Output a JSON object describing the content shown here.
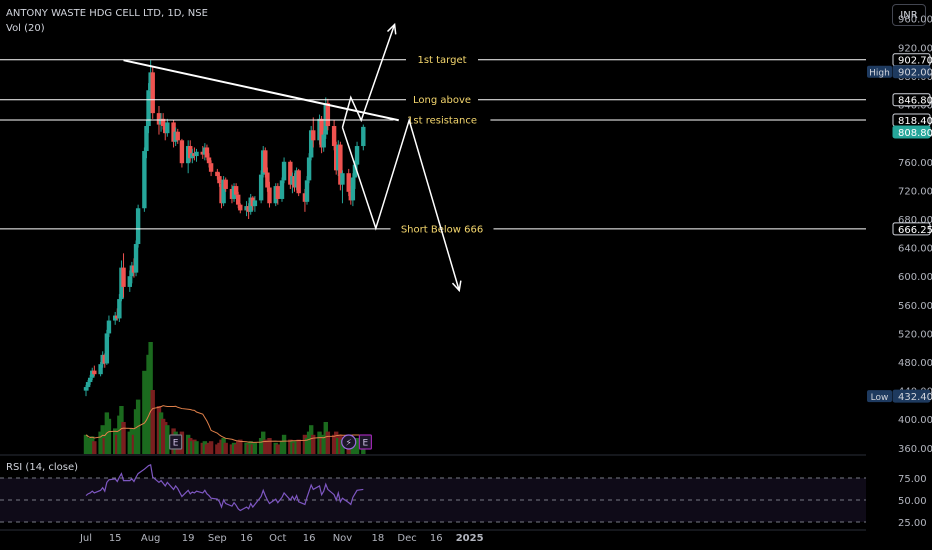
{
  "header": {
    "title": "ANTONY WASTE HDG CELL LTD, 1D, NSE",
    "volume_label": "Vol (20)",
    "rsi_label": "RSI (14, close)",
    "currency": "INR"
  },
  "chart_data": {
    "type": "candlestick",
    "symbol": "ANTONY WASTE HDG CELL LTD",
    "interval": "1D",
    "exchange": "NSE",
    "currency": "INR",
    "ylim": [
      350,
      975
    ],
    "y_ticks": [
      360,
      400,
      440,
      480,
      520,
      560,
      600,
      640,
      680,
      720,
      760,
      800,
      840,
      880,
      920,
      960
    ],
    "x_ticks": [
      {
        "label": "Jul",
        "date": "2024-07-01"
      },
      {
        "label": "15",
        "date": "2024-07-15"
      },
      {
        "label": "Aug",
        "date": "2024-08-01"
      },
      {
        "label": "19",
        "date": "2024-08-19"
      },
      {
        "label": "Sep",
        "date": "2024-09-02"
      },
      {
        "label": "16",
        "date": "2024-09-16"
      },
      {
        "label": "Oct",
        "date": "2024-10-01"
      },
      {
        "label": "16",
        "date": "2024-10-16"
      },
      {
        "label": "Nov",
        "date": "2024-11-01"
      },
      {
        "label": "18",
        "date": "2024-11-18"
      },
      {
        "label": "Dec",
        "date": "2024-12-02"
      },
      {
        "label": "16",
        "date": "2024-12-16"
      },
      {
        "label": "2025",
        "date": "2025-01-01"
      }
    ],
    "price_labels": [
      {
        "label": "",
        "value": "902.70",
        "price": 902.7,
        "style": "outline"
      },
      {
        "label": "High",
        "value": "902.00",
        "price": 902.0,
        "style": "blue"
      },
      {
        "label": "",
        "value": "846.80",
        "price": 846.8,
        "style": "outline"
      },
      {
        "label": "",
        "value": "818.40",
        "price": 818.4,
        "style": "outline"
      },
      {
        "label": "",
        "value": "808.80",
        "price": 808.8,
        "style": "green"
      },
      {
        "label": "",
        "value": "666.25",
        "price": 666.25,
        "style": "outline"
      },
      {
        "label": "Low",
        "value": "432.40",
        "price": 432.4,
        "style": "blue"
      }
    ],
    "horizontal_levels": [
      {
        "name": "1st target",
        "price": 902.7
      },
      {
        "name": "Long above",
        "price": 846.8
      },
      {
        "name": "1st resistance",
        "price": 818.4
      },
      {
        "name": "Short Below 666",
        "price": 666.25
      }
    ],
    "trendline": [
      {
        "date": "2024-07-19",
        "price": 902
      },
      {
        "date": "2024-11-28",
        "price": 818
      }
    ],
    "projections": {
      "bullish": [
        {
          "date": "2024-11-01",
          "price": 808
        },
        {
          "date": "2024-11-05",
          "price": 850
        },
        {
          "date": "2024-11-10",
          "price": 818
        },
        {
          "date": "2024-11-26",
          "price": 952
        }
      ],
      "bearish": [
        {
          "date": "2024-11-01",
          "price": 808
        },
        {
          "date": "2024-11-17",
          "price": 667
        },
        {
          "date": "2024-12-03",
          "price": 818
        },
        {
          "date": "2024-12-27",
          "price": 580
        }
      ]
    },
    "candles": [
      {
        "t": "2024-07-01",
        "o": 440,
        "h": 448,
        "l": 432.4,
        "c": 445
      },
      {
        "t": "2024-07-02",
        "o": 445,
        "h": 455,
        "l": 440,
        "c": 452
      },
      {
        "t": "2024-07-03",
        "o": 452,
        "h": 462,
        "l": 448,
        "c": 458
      },
      {
        "t": "2024-07-04",
        "o": 458,
        "h": 472,
        "l": 455,
        "c": 468
      },
      {
        "t": "2024-07-05",
        "o": 468,
        "h": 475,
        "l": 460,
        "c": 463
      },
      {
        "t": "2024-07-08",
        "o": 463,
        "h": 480,
        "l": 460,
        "c": 477
      },
      {
        "t": "2024-07-09",
        "o": 477,
        "h": 495,
        "l": 472,
        "c": 490
      },
      {
        "t": "2024-07-10",
        "o": 490,
        "h": 492,
        "l": 472,
        "c": 478
      },
      {
        "t": "2024-07-11",
        "o": 478,
        "h": 525,
        "l": 476,
        "c": 520
      },
      {
        "t": "2024-07-12",
        "o": 520,
        "h": 545,
        "l": 515,
        "c": 538
      },
      {
        "t": "2024-07-15",
        "o": 538,
        "h": 550,
        "l": 532,
        "c": 545
      },
      {
        "t": "2024-07-16",
        "o": 545,
        "h": 555,
        "l": 538,
        "c": 541
      },
      {
        "t": "2024-07-17",
        "o": 541,
        "h": 575,
        "l": 536,
        "c": 568
      },
      {
        "t": "2024-07-18",
        "o": 568,
        "h": 622,
        "l": 565,
        "c": 612
      },
      {
        "t": "2024-07-19",
        "o": 612,
        "h": 632,
        "l": 570,
        "c": 585
      },
      {
        "t": "2024-07-22",
        "o": 585,
        "h": 608,
        "l": 578,
        "c": 600
      },
      {
        "t": "2024-07-23",
        "o": 600,
        "h": 620,
        "l": 590,
        "c": 615
      },
      {
        "t": "2024-07-24",
        "o": 615,
        "h": 625,
        "l": 598,
        "c": 605
      },
      {
        "t": "2024-07-25",
        "o": 605,
        "h": 650,
        "l": 600,
        "c": 645
      },
      {
        "t": "2024-07-26",
        "o": 645,
        "h": 700,
        "l": 640,
        "c": 695
      },
      {
        "t": "2024-07-29",
        "o": 695,
        "h": 780,
        "l": 690,
        "c": 775
      },
      {
        "t": "2024-07-30",
        "o": 775,
        "h": 818,
        "l": 765,
        "c": 810
      },
      {
        "t": "2024-07-31",
        "o": 810,
        "h": 870,
        "l": 800,
        "c": 860
      },
      {
        "t": "2024-08-01",
        "o": 860,
        "h": 902,
        "l": 850,
        "c": 885
      },
      {
        "t": "2024-08-02",
        "o": 885,
        "h": 892,
        "l": 820,
        "c": 828
      },
      {
        "t": "2024-08-05",
        "o": 828,
        "h": 838,
        "l": 798,
        "c": 812
      },
      {
        "t": "2024-08-06",
        "o": 812,
        "h": 828,
        "l": 802,
        "c": 820
      },
      {
        "t": "2024-08-07",
        "o": 820,
        "h": 828,
        "l": 805,
        "c": 810
      },
      {
        "t": "2024-08-08",
        "o": 810,
        "h": 815,
        "l": 790,
        "c": 800
      },
      {
        "t": "2024-08-09",
        "o": 800,
        "h": 820,
        "l": 795,
        "c": 815
      },
      {
        "t": "2024-08-12",
        "o": 815,
        "h": 818,
        "l": 780,
        "c": 788
      },
      {
        "t": "2024-08-13",
        "o": 788,
        "h": 808,
        "l": 782,
        "c": 802
      },
      {
        "t": "2024-08-14",
        "o": 802,
        "h": 806,
        "l": 785,
        "c": 790
      },
      {
        "t": "2024-08-16",
        "o": 790,
        "h": 792,
        "l": 752,
        "c": 758
      },
      {
        "t": "2024-08-19",
        "o": 758,
        "h": 790,
        "l": 744,
        "c": 782
      },
      {
        "t": "2024-08-20",
        "o": 782,
        "h": 790,
        "l": 760,
        "c": 765
      },
      {
        "t": "2024-08-21",
        "o": 765,
        "h": 778,
        "l": 758,
        "c": 772
      },
      {
        "t": "2024-08-22",
        "o": 772,
        "h": 780,
        "l": 762,
        "c": 768
      },
      {
        "t": "2024-08-23",
        "o": 768,
        "h": 778,
        "l": 760,
        "c": 774
      },
      {
        "t": "2024-08-26",
        "o": 774,
        "h": 782,
        "l": 764,
        "c": 770
      },
      {
        "t": "2024-08-27",
        "o": 770,
        "h": 786,
        "l": 762,
        "c": 780
      },
      {
        "t": "2024-08-28",
        "o": 780,
        "h": 784,
        "l": 762,
        "c": 766
      },
      {
        "t": "2024-08-29",
        "o": 766,
        "h": 772,
        "l": 752,
        "c": 758
      },
      {
        "t": "2024-08-30",
        "o": 758,
        "h": 762,
        "l": 740,
        "c": 746
      },
      {
        "t": "2024-09-02",
        "o": 746,
        "h": 750,
        "l": 735,
        "c": 740
      },
      {
        "t": "2024-09-03",
        "o": 740,
        "h": 745,
        "l": 725,
        "c": 730
      },
      {
        "t": "2024-09-04",
        "o": 730,
        "h": 735,
        "l": 695,
        "c": 702
      },
      {
        "t": "2024-09-05",
        "o": 702,
        "h": 740,
        "l": 698,
        "c": 735
      },
      {
        "t": "2024-09-06",
        "o": 735,
        "h": 738,
        "l": 718,
        "c": 722
      },
      {
        "t": "2024-09-09",
        "o": 722,
        "h": 728,
        "l": 702,
        "c": 708
      },
      {
        "t": "2024-09-10",
        "o": 708,
        "h": 730,
        "l": 704,
        "c": 726
      },
      {
        "t": "2024-09-11",
        "o": 726,
        "h": 730,
        "l": 710,
        "c": 714
      },
      {
        "t": "2024-09-12",
        "o": 714,
        "h": 718,
        "l": 695,
        "c": 700
      },
      {
        "t": "2024-09-13",
        "o": 700,
        "h": 702,
        "l": 688,
        "c": 692
      },
      {
        "t": "2024-09-16",
        "o": 692,
        "h": 705,
        "l": 684,
        "c": 698
      },
      {
        "t": "2024-09-17",
        "o": 698,
        "h": 702,
        "l": 680,
        "c": 690
      },
      {
        "t": "2024-09-18",
        "o": 690,
        "h": 715,
        "l": 686,
        "c": 710
      },
      {
        "t": "2024-09-19",
        "o": 710,
        "h": 712,
        "l": 692,
        "c": 698
      },
      {
        "t": "2024-09-20",
        "o": 698,
        "h": 712,
        "l": 690,
        "c": 706
      },
      {
        "t": "2024-09-23",
        "o": 706,
        "h": 748,
        "l": 702,
        "c": 742
      },
      {
        "t": "2024-09-24",
        "o": 742,
        "h": 782,
        "l": 738,
        "c": 776
      },
      {
        "t": "2024-09-25",
        "o": 776,
        "h": 780,
        "l": 738,
        "c": 745
      },
      {
        "t": "2024-09-26",
        "o": 745,
        "h": 752,
        "l": 718,
        "c": 724
      },
      {
        "t": "2024-09-27",
        "o": 724,
        "h": 732,
        "l": 696,
        "c": 702
      },
      {
        "t": "2024-09-30",
        "o": 702,
        "h": 730,
        "l": 698,
        "c": 726
      },
      {
        "t": "2024-10-01",
        "o": 726,
        "h": 730,
        "l": 700,
        "c": 708
      },
      {
        "t": "2024-10-03",
        "o": 708,
        "h": 738,
        "l": 704,
        "c": 734
      },
      {
        "t": "2024-10-04",
        "o": 734,
        "h": 766,
        "l": 730,
        "c": 760
      },
      {
        "t": "2024-10-07",
        "o": 760,
        "h": 762,
        "l": 722,
        "c": 728
      },
      {
        "t": "2024-10-08",
        "o": 728,
        "h": 745,
        "l": 716,
        "c": 740
      },
      {
        "t": "2024-10-09",
        "o": 740,
        "h": 744,
        "l": 718,
        "c": 724
      },
      {
        "t": "2024-10-10",
        "o": 724,
        "h": 752,
        "l": 720,
        "c": 748
      },
      {
        "t": "2024-10-11",
        "o": 748,
        "h": 750,
        "l": 712,
        "c": 716
      },
      {
        "t": "2024-10-14",
        "o": 716,
        "h": 722,
        "l": 690,
        "c": 704
      },
      {
        "t": "2024-10-15",
        "o": 704,
        "h": 740,
        "l": 700,
        "c": 734
      },
      {
        "t": "2024-10-16",
        "o": 734,
        "h": 772,
        "l": 730,
        "c": 766
      },
      {
        "t": "2024-10-17",
        "o": 766,
        "h": 810,
        "l": 762,
        "c": 804
      },
      {
        "t": "2024-10-18",
        "o": 804,
        "h": 822,
        "l": 780,
        "c": 790
      },
      {
        "t": "2024-10-21",
        "o": 790,
        "h": 826,
        "l": 784,
        "c": 820
      },
      {
        "t": "2024-10-22",
        "o": 820,
        "h": 824,
        "l": 772,
        "c": 780
      },
      {
        "t": "2024-10-23",
        "o": 780,
        "h": 804,
        "l": 774,
        "c": 798
      },
      {
        "t": "2024-10-24",
        "o": 798,
        "h": 850,
        "l": 792,
        "c": 842
      },
      {
        "t": "2024-10-25",
        "o": 842,
        "h": 848,
        "l": 804,
        "c": 810
      },
      {
        "t": "2024-10-28",
        "o": 810,
        "h": 818,
        "l": 776,
        "c": 782
      },
      {
        "t": "2024-10-29",
        "o": 782,
        "h": 788,
        "l": 742,
        "c": 748
      },
      {
        "t": "2024-10-30",
        "o": 748,
        "h": 790,
        "l": 740,
        "c": 784
      },
      {
        "t": "2024-10-31",
        "o": 784,
        "h": 788,
        "l": 720,
        "c": 728
      },
      {
        "t": "2024-11-01",
        "o": 728,
        "h": 748,
        "l": 702,
        "c": 744
      },
      {
        "t": "2024-11-04",
        "o": 744,
        "h": 750,
        "l": 712,
        "c": 718
      },
      {
        "t": "2024-11-05",
        "o": 718,
        "h": 726,
        "l": 700,
        "c": 706
      },
      {
        "t": "2024-11-06",
        "o": 706,
        "h": 744,
        "l": 698,
        "c": 738
      },
      {
        "t": "2024-11-07",
        "o": 738,
        "h": 762,
        "l": 722,
        "c": 756
      },
      {
        "t": "2024-11-08",
        "o": 756,
        "h": 788,
        "l": 748,
        "c": 782
      },
      {
        "t": "2024-11-11",
        "o": 782,
        "h": 812,
        "l": 776,
        "c": 808.8
      }
    ],
    "volume": [
      12,
      10,
      9,
      11,
      8,
      14,
      18,
      10,
      26,
      22,
      16,
      12,
      24,
      30,
      20,
      14,
      16,
      12,
      28,
      34,
      52,
      48,
      62,
      70,
      40,
      30,
      26,
      22,
      20,
      18,
      16,
      14,
      12,
      14,
      12,
      10,
      8,
      9,
      8,
      7,
      8,
      6,
      7,
      8,
      6,
      7,
      9,
      10,
      7,
      6,
      7,
      6,
      8,
      9,
      7,
      6,
      8,
      6,
      7,
      10,
      14,
      9,
      8,
      10,
      7,
      6,
      8,
      12,
      9,
      8,
      7,
      8,
      9,
      12,
      10,
      14,
      18,
      12,
      14,
      10,
      12,
      20,
      14,
      12,
      14,
      10,
      12,
      9,
      10,
      8,
      9,
      8,
      10,
      12
    ],
    "rsi": [
      55,
      57,
      58,
      60,
      58,
      61,
      64,
      60,
      70,
      73,
      74,
      71,
      76,
      80,
      72,
      72,
      74,
      71,
      76,
      80,
      85,
      87,
      89,
      90,
      76,
      70,
      72,
      69,
      66,
      70,
      62,
      66,
      63,
      54,
      61,
      57,
      59,
      58,
      60,
      58,
      61,
      57,
      55,
      52,
      51,
      48,
      42,
      50,
      46,
      43,
      47,
      44,
      40,
      38,
      42,
      40,
      46,
      42,
      45,
      54,
      61,
      55,
      50,
      46,
      51,
      47,
      53,
      58,
      50,
      54,
      50,
      55,
      48,
      45,
      53,
      60,
      67,
      62,
      66,
      56,
      60,
      68,
      62,
      56,
      50,
      58,
      48,
      52,
      47,
      45,
      53,
      57,
      61,
      62
    ],
    "rsi_ticks": [
      25,
      50,
      75
    ],
    "rsi_axis_labels": [
      "25.00",
      "50.00",
      "75.00"
    ],
    "colors": {
      "up": "#26a69a",
      "down": "#ef5350",
      "vol_up": "#1b6a1e",
      "vol_down": "#7a1f1f",
      "rsi": "#7e57c2",
      "level": "#ffffff",
      "label": "#f5d76e",
      "vol_ma": "#e0804a"
    },
    "markers": [
      {
        "type": "earnings",
        "symbol": "E",
        "date": "2024-08-13"
      },
      {
        "type": "dividend",
        "symbol": "⚡",
        "date": "2024-11-04"
      },
      {
        "type": "earnings",
        "symbol": "E",
        "date": "2024-11-12"
      }
    ]
  }
}
